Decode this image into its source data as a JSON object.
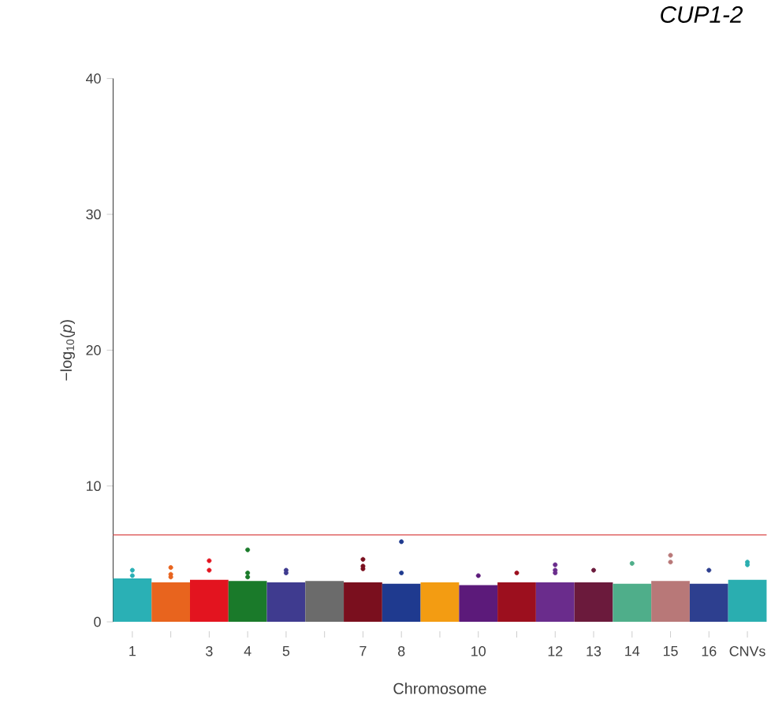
{
  "chart_data": {
    "type": "scatter",
    "title": "CUP1-2",
    "xlabel": "Chromosome",
    "ylabel": "−log$_{10}$(*p*)",
    "categories": [
      "1",
      null,
      "3",
      "4",
      "5",
      null,
      "7",
      "8",
      null,
      "10",
      null,
      "12",
      "13",
      "14",
      "15",
      "16",
      "CNVs"
    ],
    "ylim": [
      0,
      40
    ],
    "yticks": [
      0,
      10,
      20,
      30,
      40
    ],
    "grid": false,
    "marker": "circle",
    "ref_lines": [
      {
        "axis": "y",
        "value": 6.4,
        "color": "#e06666"
      }
    ],
    "series": [
      {
        "type": "bar",
        "colors": [
          "#2ab0b5",
          "#e8641e",
          "#e3141f",
          "#1a7a2a",
          "#3f3b8f",
          "#6b6b6b",
          "#7a0f1e",
          "#1f3a8f",
          "#f39c12",
          "#5c1a7a",
          "#9c0f1e",
          "#6a2c8c",
          "#6b1a3c",
          "#4fae8a",
          "#b87878",
          "#2d3f8f",
          "#2aaeb0"
        ],
        "values": [
          3.2,
          2.9,
          3.1,
          3.0,
          2.9,
          3.0,
          2.9,
          2.8,
          2.9,
          2.7,
          2.9,
          2.9,
          2.9,
          2.8,
          3.0,
          2.8,
          3.1
        ]
      },
      {
        "colors": [
          "#2ab0b5",
          "#e8641e",
          "#e3141f",
          "#1a7a2a",
          "#3f3b8f",
          "#6b6b6b",
          "#7a0f1e",
          "#1f3a8f",
          "#f39c12",
          "#5c1a7a",
          "#9c0f1e",
          "#6a2c8c",
          "#6b1a3c",
          "#4fae8a",
          "#b87878",
          "#2d3f8f",
          "#2aaeb0"
        ],
        "values": [
          3.8,
          4.0,
          4.5,
          5.3,
          3.8,
          null,
          4.6,
          5.9,
          null,
          3.4,
          3.6,
          4.2,
          3.8,
          4.3,
          4.9,
          3.8,
          4.4
        ]
      },
      {
        "colors": [
          "#2ab0b5",
          "#e8641e",
          "#e3141f",
          "#1a7a2a",
          "#3f3b8f",
          "#6b6b6b",
          "#7a0f1e",
          "#1f3a8f",
          "#f39c12",
          "#5c1a7a",
          "#9c0f1e",
          "#6a2c8c",
          "#6b1a3c",
          "#4fae8a",
          "#b87878",
          "#2d3f8f",
          "#2aaeb0"
        ],
        "values": [
          3.4,
          3.5,
          3.8,
          3.6,
          3.6,
          null,
          4.1,
          3.6,
          null,
          null,
          null,
          3.8,
          null,
          null,
          4.4,
          null,
          4.2
        ]
      },
      {
        "colors": [
          "#2ab0b5",
          "#e8641e",
          "#e3141f",
          "#1a7a2a",
          "#3f3b8f",
          "#6b6b6b",
          "#7a0f1e",
          "#1f3a8f",
          "#f39c12",
          "#5c1a7a",
          "#9c0f1e",
          "#6a2c8c",
          "#6b1a3c",
          "#4fae8a",
          "#b87878",
          "#2d3f8f",
          "#2aaeb0"
        ],
        "values": [
          null,
          3.3,
          null,
          3.3,
          null,
          null,
          3.9,
          null,
          null,
          null,
          null,
          3.6,
          null,
          null,
          null,
          null,
          null
        ]
      }
    ]
  }
}
